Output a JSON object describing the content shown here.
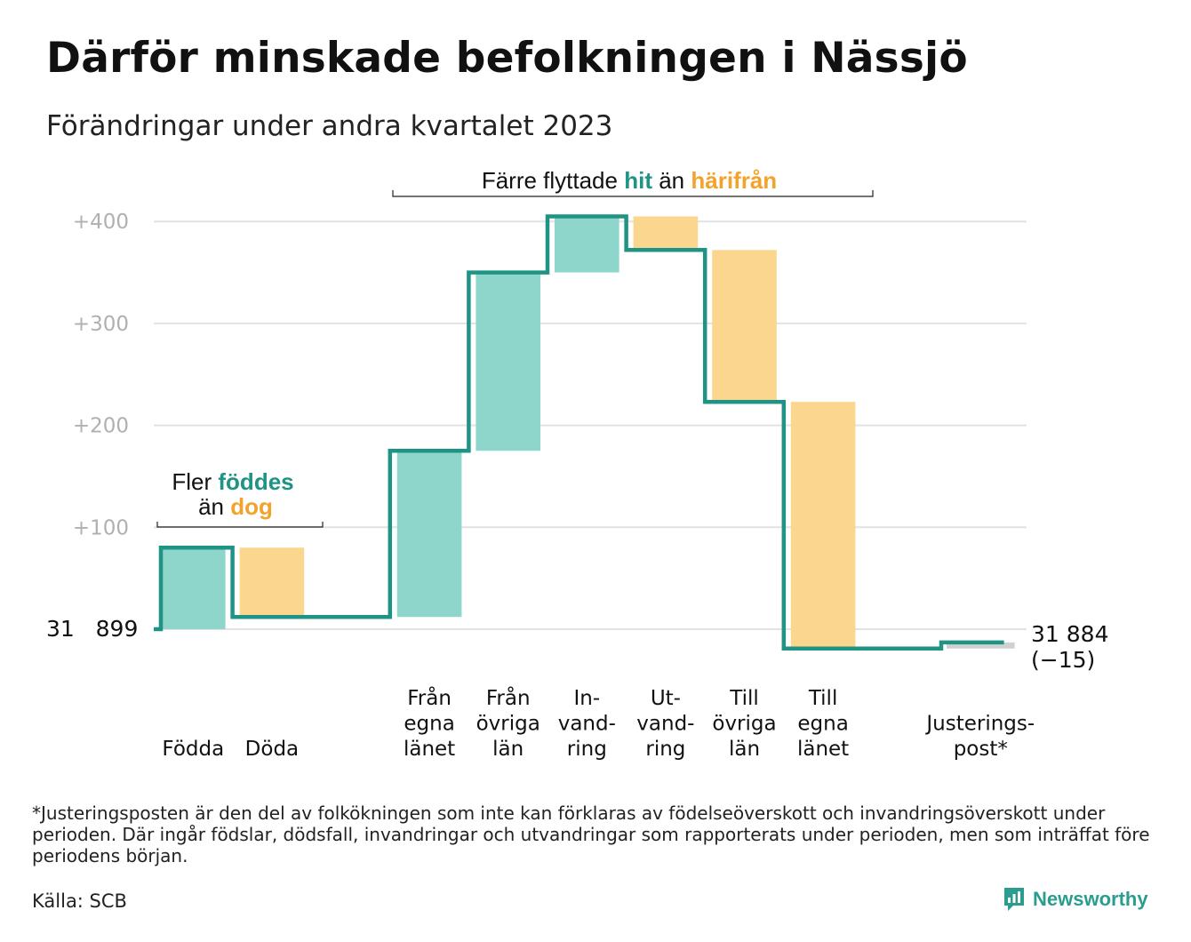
{
  "header": {
    "title": "Därför minskade befolkningen i Nässjö",
    "subtitle": "Förändringar under andra kvartalet 2023"
  },
  "colors": {
    "increase": "#8ed5cb",
    "decrease": "#fbd68f",
    "line": "#1f9484",
    "highlight_in": "#1f9484",
    "highlight_out": "#f3a32b",
    "grid": "#e2e2e2",
    "tick": "#b0b0b0"
  },
  "annotations": {
    "births": {
      "line1_pre": "Fler",
      "line1_hi": "föddes",
      "line2_pre": "än",
      "line2_hi": "dog"
    },
    "migration": {
      "pre": "Färre flyttade",
      "hi_in": "hit",
      "mid": "än",
      "hi_out": "härifrån"
    }
  },
  "chart_data": {
    "type": "waterfall",
    "start": {
      "label": "31   899",
      "value": 0
    },
    "end": {
      "label": "31 884",
      "change_label": "(−15)",
      "value": -15
    },
    "y_ticks": [
      "+100",
      "+200",
      "+300",
      "+400"
    ],
    "ylim": [
      -30,
      410
    ],
    "grid": true,
    "steps": [
      {
        "label": [
          "Födda"
        ],
        "change": 80,
        "kind": "increase"
      },
      {
        "label": [
          "Döda"
        ],
        "change": -68,
        "kind": "decrease"
      },
      {
        "label": [],
        "change": 0,
        "kind": "gap"
      },
      {
        "label": [
          "Från",
          "egna",
          "länet"
        ],
        "change": 163,
        "kind": "increase"
      },
      {
        "label": [
          "Från",
          "övriga",
          "län"
        ],
        "change": 175,
        "kind": "increase"
      },
      {
        "label": [
          "In-",
          "vand-",
          "ring"
        ],
        "change": 55,
        "kind": "increase"
      },
      {
        "label": [
          "Ut-",
          "vand-",
          "ring"
        ],
        "change": -33,
        "kind": "decrease"
      },
      {
        "label": [
          "Till",
          "övriga",
          "län"
        ],
        "change": -149,
        "kind": "decrease"
      },
      {
        "label": [
          "Till",
          "egna",
          "länet"
        ],
        "change": -242,
        "kind": "decrease"
      },
      {
        "label": [],
        "change": 0,
        "kind": "gap"
      },
      {
        "label": [
          "Justerings-",
          "post*"
        ],
        "change": 6,
        "kind": "adjustment"
      }
    ]
  },
  "footer": {
    "footnote": "*Justeringsposten är den del av folkökningen som inte kan förklaras av födelseöverskott och invandringsöverskott under perioden. Där ingår födslar, dödsfall, invandringar och utvandringar som rapporterats under perioden, men som inträffat före periodens början.",
    "source": "Källa: SCB",
    "brand": "Newsworthy"
  }
}
